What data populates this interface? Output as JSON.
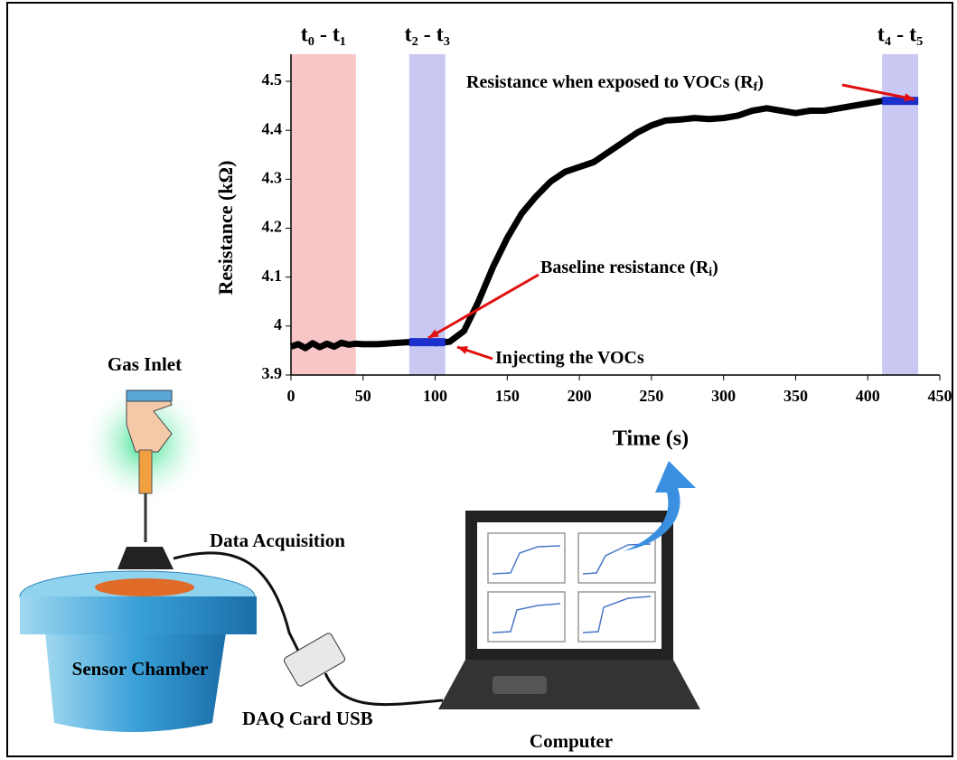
{
  "chart_data": {
    "type": "line",
    "x": [
      0,
      5,
      10,
      15,
      20,
      25,
      30,
      35,
      40,
      45,
      50,
      60,
      70,
      80,
      90,
      100,
      110,
      120,
      130,
      140,
      150,
      160,
      170,
      180,
      190,
      200,
      210,
      220,
      230,
      240,
      250,
      260,
      270,
      280,
      290,
      300,
      310,
      320,
      330,
      340,
      350,
      360,
      370,
      380,
      390,
      400,
      410,
      420,
      430,
      435
    ],
    "series": [
      {
        "color": "#000000",
        "values": [
          3.958,
          3.963,
          3.955,
          3.965,
          3.957,
          3.964,
          3.958,
          3.966,
          3.962,
          3.964,
          3.963,
          3.963,
          3.965,
          3.967,
          3.968,
          3.965,
          3.968,
          3.99,
          4.05,
          4.12,
          4.18,
          4.23,
          4.265,
          4.295,
          4.315,
          4.325,
          4.335,
          4.355,
          4.375,
          4.395,
          4.41,
          4.42,
          4.422,
          4.425,
          4.423,
          4.425,
          4.43,
          4.44,
          4.445,
          4.44,
          4.435,
          4.44,
          4.44,
          4.445,
          4.45,
          4.455,
          4.46,
          4.46,
          4.46,
          4.46
        ]
      }
    ],
    "xlim": [
      0,
      450
    ],
    "xticks": [
      0,
      50,
      100,
      150,
      200,
      250,
      300,
      350,
      400,
      450
    ],
    "ylim": [
      3.9,
      4.5
    ],
    "yticks": [
      3.9,
      4,
      4.1,
      4.2,
      4.3,
      4.4,
      4.5
    ],
    "xlabel": "Time (s)",
    "ylabel": "Resistance (kΩ)",
    "bands": [
      {
        "label": "t₀ - t₁",
        "start": 0,
        "end": 45,
        "color": "#f8c6c6"
      },
      {
        "label": "t₂ - t₃",
        "start": 82,
        "end": 107,
        "color": "#c8c8f2"
      },
      {
        "label": "t₄ - t₅",
        "start": 410,
        "end": 435,
        "color": "#c8c8f2"
      }
    ],
    "annotations": [
      {
        "text": "Resistance when exposed to VOCs (R",
        "sub": "f",
        "tail": ")"
      },
      {
        "text": "Baseline resistance (R",
        "sub": "i",
        "tail": ")"
      },
      {
        "text": "Injecting the VOCs"
      }
    ]
  },
  "diagram": {
    "gas_inlet": "Gas Inlet",
    "data_acquisition": "Data Acquisition",
    "sensor_chamber": "Sensor Chamber",
    "daq_card": "DAQ Card USB",
    "computer": "Computer"
  }
}
